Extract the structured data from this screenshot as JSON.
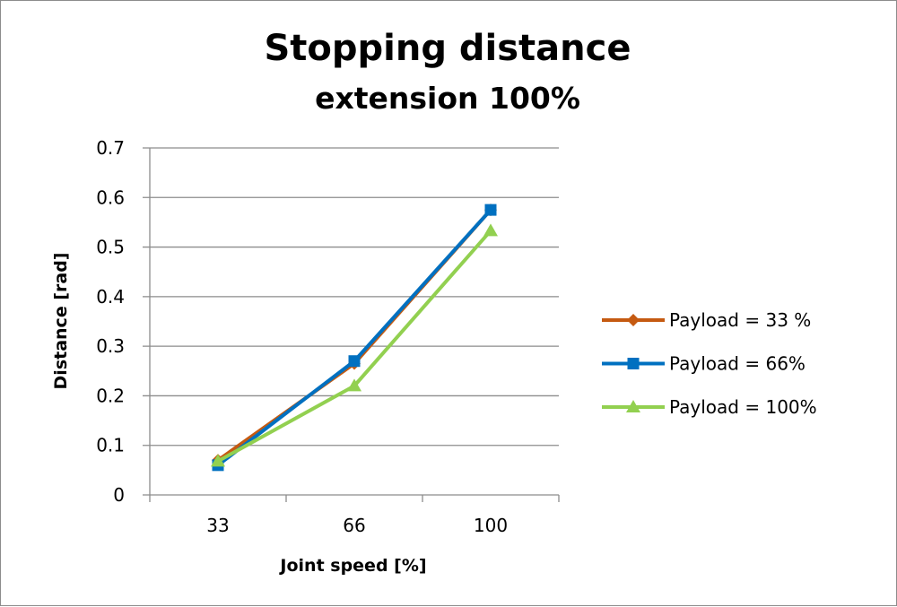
{
  "chart_data": {
    "type": "line",
    "title": "Stopping distance",
    "subtitle": "extension 100%",
    "xlabel": "Joint speed [%]",
    "ylabel": "Distance [rad]",
    "categories": [
      "33",
      "66",
      "100"
    ],
    "ylim": [
      0,
      0.7
    ],
    "yticks": [
      "0",
      "0.1",
      "0.2",
      "0.3",
      "0.4",
      "0.5",
      "0.6",
      "0.7"
    ],
    "grid": true,
    "legend_position": "right",
    "series": [
      {
        "name": "Payload = 33 %",
        "values": [
          0.07,
          0.265,
          0.575
        ],
        "color": "#C55A11",
        "marker": "diamond"
      },
      {
        "name": "Payload =  66%",
        "values": [
          0.06,
          0.27,
          0.575
        ],
        "color": "#0070C0",
        "marker": "square"
      },
      {
        "name": "Payload =  100%",
        "values": [
          0.068,
          0.22,
          0.533
        ],
        "color": "#92D050",
        "marker": "triangle"
      }
    ]
  }
}
